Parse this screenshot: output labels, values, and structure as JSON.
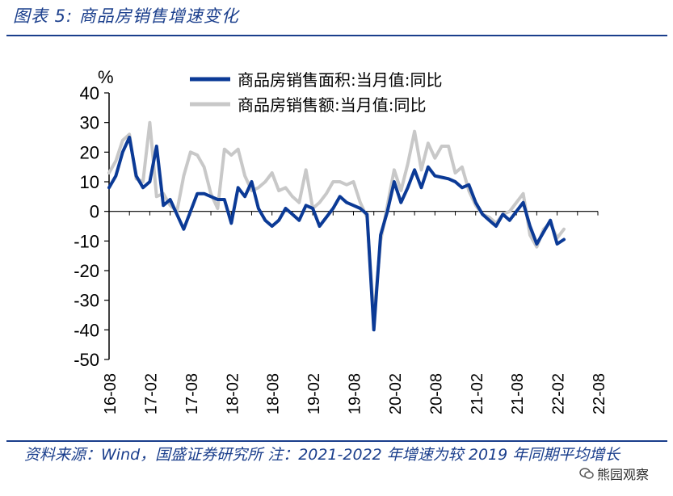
{
  "figure": {
    "title": "图表 5: 商品房销售增速变化",
    "source_note": "资料来源：Wind，国盛证券研究所 注：2021-2022 年增速为较 2019 年同期平均增长",
    "watermark": "熊园观察"
  },
  "colors": {
    "accent": "#1a3e8c",
    "series_area": "#0b3a96",
    "series_sales": "#c8c8c8"
  },
  "chart_data": {
    "type": "line",
    "title": "",
    "ylabel": "%",
    "xlabel": "",
    "ylim": [
      -50,
      40
    ],
    "yticks": [
      "40",
      "30",
      "20",
      "10",
      "0",
      "-10",
      "-20",
      "-30",
      "-40",
      "-50"
    ],
    "xticks": [
      "16-08",
      "17-02",
      "17-08",
      "18-02",
      "18-08",
      "19-02",
      "19-08",
      "20-02",
      "20-08",
      "21-02",
      "21-08",
      "22-02",
      "22-08"
    ],
    "legend_position": "top",
    "grid": false,
    "x_months_since_2016_08": [
      0,
      1,
      2,
      3,
      4,
      5,
      6,
      7,
      8,
      9,
      10,
      11,
      12,
      13,
      14,
      15,
      16,
      17,
      18,
      19,
      20,
      21,
      22,
      23,
      24,
      25,
      26,
      27,
      28,
      29,
      30,
      31,
      32,
      33,
      34,
      35,
      36,
      37,
      38,
      39,
      40,
      41,
      42,
      43,
      44,
      45,
      46,
      47,
      48,
      49,
      50,
      51,
      52,
      53,
      54,
      55,
      56,
      57,
      58,
      59,
      60,
      61,
      62,
      63,
      64,
      65,
      66,
      67,
      68,
      69,
      70,
      71,
      72
    ],
    "series": [
      {
        "name": "商品房销售面积:当月值:同比",
        "values": [
          8,
          12,
          20,
          25,
          12,
          8,
          10,
          22,
          2,
          4,
          -1,
          -6,
          0,
          6,
          6,
          5,
          4,
          4,
          -4,
          8,
          5,
          10,
          1,
          -3,
          -5,
          -3,
          1,
          -1,
          -3,
          2,
          1,
          -5,
          -2,
          1,
          5,
          3,
          2,
          1,
          -1,
          -40,
          -8,
          0,
          10,
          3,
          8,
          14,
          8,
          15,
          12,
          11.5,
          11,
          10,
          8,
          9,
          3,
          -1,
          -3,
          -5,
          -1,
          -3,
          0,
          3,
          -5,
          -11,
          -7,
          -3,
          -11,
          -9.5,
          null,
          null,
          null,
          null,
          null
        ]
      },
      {
        "name": "商品房销售额:当月值:同比",
        "values": [
          13,
          17,
          24,
          26,
          11,
          10,
          30,
          5,
          6,
          2,
          0,
          12,
          20,
          19,
          15,
          6,
          1,
          21,
          19,
          21,
          12,
          7,
          8,
          10,
          13,
          7,
          8,
          5,
          3,
          14,
          1,
          3,
          6,
          10,
          10,
          9,
          10,
          3,
          -2,
          -36,
          -10,
          2,
          14,
          7,
          16,
          27,
          14,
          23,
          18,
          22,
          22,
          13,
          15,
          7,
          2,
          -1,
          -2,
          -4,
          -1,
          0,
          3,
          6,
          -8,
          -12,
          -6,
          -4,
          -9,
          -6,
          null,
          null,
          null,
          null,
          null
        ]
      }
    ]
  }
}
